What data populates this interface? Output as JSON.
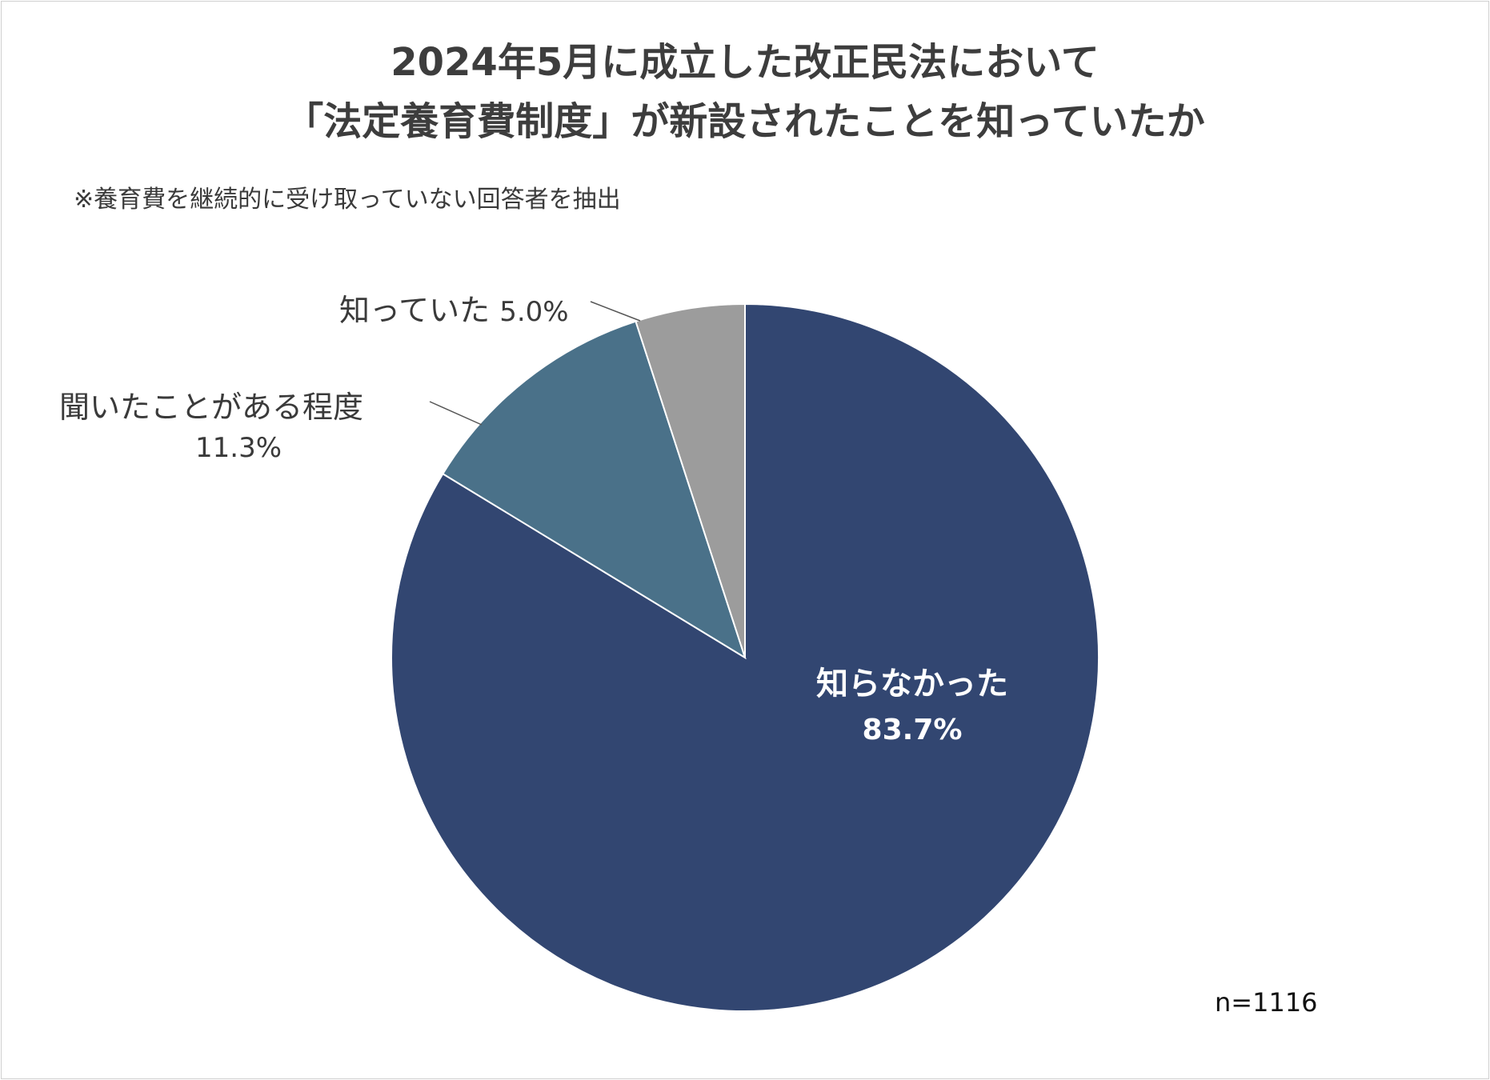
{
  "chart_data": {
    "type": "pie",
    "title": "2024年5月に成立した改正民法において",
    "subtitle": "「法定養育費制度」が新設されたことを知っていたか",
    "note": "※養育費を継続的に受け取っていない回答者を抽出",
    "sample_size": "n=1116",
    "start_angle": "12 o'clock",
    "direction": "clockwise",
    "slices": [
      {
        "label": "知らなかった",
        "value": 83.7,
        "value_label": "83.7%",
        "color": "#324671",
        "label_position": "inside"
      },
      {
        "label": "聞いたことがある程度",
        "value": 11.3,
        "value_label": "11.3%",
        "color": "#4a7189",
        "label_position": "outside-left"
      },
      {
        "label": "知っていた",
        "value": 5.0,
        "value_label": "5.0%",
        "color": "#9c9c9c",
        "label_position": "outside-top-left"
      }
    ]
  }
}
